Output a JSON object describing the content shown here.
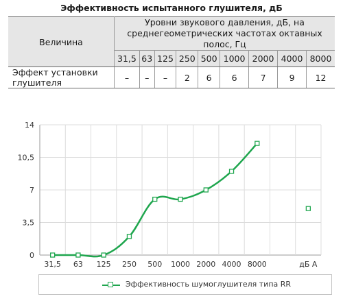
{
  "table": {
    "title": "Эффективность испытанного глушителя, дБ",
    "col_header": "Величина",
    "group_header": "Уровни звукового давления, дБ, на среднегеометрических частотах октавных полос, Гц",
    "frequencies": [
      "31,5",
      "63",
      "125",
      "250",
      "500",
      "1000",
      "2000",
      "4000",
      "8000"
    ],
    "row_label": "Эффект установки глушителя",
    "row_values": [
      "–",
      "–",
      "–",
      "2",
      "6",
      "6",
      "7",
      "9",
      "12"
    ]
  },
  "chart_data": {
    "type": "line",
    "categories": [
      "31,5",
      "63",
      "125",
      "250",
      "500",
      "1000",
      "2000",
      "4000",
      "8000",
      "",
      "дБ А"
    ],
    "y_ticks": [
      "0",
      "3,5",
      "7",
      "10,5",
      "14"
    ],
    "ylim": [
      0,
      14
    ],
    "grid": true,
    "legend_position": "bottom",
    "series": [
      {
        "name": "Эффективность шумоглушителя типа RR",
        "color": "#1fa64e",
        "values": [
          0,
          0,
          0,
          2,
          6,
          6,
          7,
          9,
          12,
          null,
          null
        ]
      }
    ],
    "dba_point": {
      "category": "дБ А",
      "value": 5
    }
  }
}
